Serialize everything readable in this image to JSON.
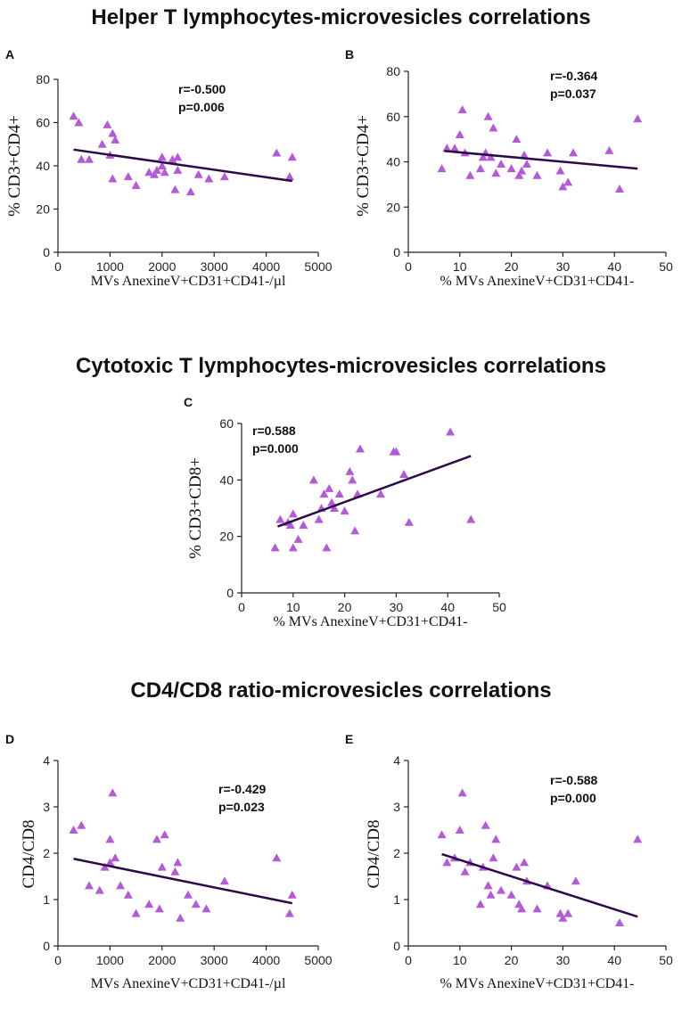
{
  "titles": {
    "helper": "Helper T lymphocytes-microvesicles  correlations",
    "cytotoxic": "Cytotoxic T lymphocytes-microvesicles  correlations",
    "ratio": "CD4/CD8 ratio-microvesicles  correlations"
  },
  "colors": {
    "marker": "#b45ad8",
    "line": "#2a0a4a"
  },
  "chart_data": [
    {
      "id": "A",
      "type": "scatter",
      "letter": "A",
      "xlabel": "MVs AnexineV+CD31+CD41-/µl",
      "ylabel": "% CD3+CD4+",
      "xlim": [
        0,
        5000
      ],
      "ylim": [
        0,
        80
      ],
      "xticks": [
        0,
        1000,
        2000,
        3000,
        4000,
        5000
      ],
      "yticks": [
        0,
        20,
        40,
        60,
        80
      ],
      "stats": [
        "r=-0.500",
        "p=0.006"
      ],
      "x": [
        300,
        400,
        450,
        600,
        850,
        950,
        1000,
        1050,
        1050,
        1100,
        1350,
        1500,
        1750,
        1850,
        1900,
        2000,
        2000,
        2050,
        2200,
        2250,
        2300,
        2300,
        2550,
        2700,
        2900,
        3200,
        4200,
        4450,
        4500
      ],
      "y": [
        63,
        60,
        43,
        43,
        50,
        59,
        45,
        34,
        55,
        52,
        35,
        31,
        37,
        36,
        38,
        44,
        40,
        37,
        43,
        29,
        44,
        38,
        28,
        36,
        34,
        35,
        46,
        35,
        44
      ],
      "fit": {
        "x": [
          300,
          4500
        ],
        "y": [
          47.5,
          33
        ]
      }
    },
    {
      "id": "B",
      "type": "scatter",
      "letter": "B",
      "xlabel": "% MVs AnexineV+CD31+CD41-",
      "ylabel": "% CD3+CD4+",
      "xlim": [
        0,
        50
      ],
      "ylim": [
        0,
        80
      ],
      "xticks": [
        0,
        10,
        20,
        30,
        40,
        50
      ],
      "yticks": [
        0,
        20,
        40,
        60,
        80
      ],
      "stats": [
        "r=-0.364",
        "p=0.037"
      ],
      "x": [
        6.5,
        7.5,
        9,
        10,
        10.5,
        11,
        12,
        14,
        14.5,
        15,
        15.5,
        16,
        16.5,
        17,
        18,
        20,
        21,
        21.5,
        22,
        22.5,
        23,
        25,
        27,
        29.5,
        30,
        31,
        32,
        39,
        41,
        44.5
      ],
      "y": [
        37,
        46,
        46,
        52,
        63,
        44,
        34,
        37,
        42,
        44,
        60,
        42,
        55,
        35,
        39,
        37,
        50,
        34,
        36,
        43,
        39,
        34,
        44,
        36,
        29,
        31,
        44,
        45,
        28,
        59
      ],
      "fit": {
        "x": [
          7,
          44.5
        ],
        "y": [
          44.8,
          37
        ]
      }
    },
    {
      "id": "C",
      "type": "scatter",
      "letter": "C",
      "xlabel": "% MVs AnexineV+CD31+CD41-",
      "ylabel": "% CD3+CD8+",
      "xlim": [
        0,
        50
      ],
      "ylim": [
        0,
        60
      ],
      "xticks": [
        0,
        10,
        20,
        30,
        40,
        50
      ],
      "yticks": [
        0,
        20,
        40,
        60
      ],
      "stats": [
        "r=0.588",
        "p=0.000"
      ],
      "x": [
        6.5,
        7.5,
        9,
        9.5,
        10,
        10,
        11,
        12,
        14,
        15,
        15.5,
        16,
        16.5,
        17,
        17.5,
        18,
        19,
        20,
        21,
        21.5,
        22,
        22.5,
        23,
        27,
        29.5,
        30,
        31.5,
        32.5,
        40.5,
        44.5
      ],
      "y": [
        16,
        26,
        25,
        24,
        16,
        28,
        19,
        24,
        40,
        26,
        30,
        35,
        16,
        37,
        32,
        30,
        35,
        29,
        43,
        40,
        22,
        35,
        51,
        35,
        50,
        50,
        42,
        25,
        57,
        26
      ],
      "fit": {
        "x": [
          7,
          44.5
        ],
        "y": [
          23.5,
          48.5
        ]
      }
    },
    {
      "id": "D",
      "type": "scatter",
      "letter": "D",
      "xlabel": "MVs AnexineV+CD31+CD41-/µl",
      "ylabel": "CD4/CD8",
      "xlim": [
        0,
        5000
      ],
      "ylim": [
        0,
        4
      ],
      "xticks": [
        0,
        1000,
        2000,
        3000,
        4000,
        5000
      ],
      "yticks": [
        0,
        1,
        2,
        3,
        4
      ],
      "stats": [
        "r=-0.429",
        "p=0.023"
      ],
      "x": [
        300,
        450,
        600,
        800,
        900,
        1000,
        1000,
        1050,
        1100,
        1200,
        1350,
        1500,
        1750,
        1900,
        1950,
        2000,
        2050,
        2250,
        2300,
        2350,
        2500,
        2650,
        2850,
        3200,
        4200,
        4450,
        4500
      ],
      "y": [
        2.5,
        2.6,
        1.3,
        1.2,
        1.7,
        2.3,
        1.8,
        3.3,
        1.9,
        1.3,
        1.1,
        0.7,
        0.9,
        2.3,
        0.8,
        1.7,
        2.4,
        1.6,
        1.8,
        0.6,
        1.1,
        0.9,
        0.8,
        1.4,
        1.9,
        0.7,
        1.1
      ],
      "fit": {
        "x": [
          300,
          4500
        ],
        "y": [
          1.88,
          0.92
        ]
      }
    },
    {
      "id": "E",
      "type": "scatter",
      "letter": "E",
      "xlabel": "% MVs AnexineV+CD31+CD41-",
      "ylabel": "CD4/CD8",
      "xlim": [
        0,
        50
      ],
      "ylim": [
        0,
        4
      ],
      "xticks": [
        0,
        10,
        20,
        30,
        40,
        50
      ],
      "yticks": [
        0,
        1,
        2,
        3,
        4
      ],
      "stats": [
        "r=-0.588",
        "p=0.000"
      ],
      "x": [
        6.5,
        7.5,
        9,
        10,
        10.5,
        11,
        12,
        14,
        14.5,
        15,
        15.5,
        16,
        16.5,
        17,
        18,
        20,
        21,
        21.5,
        22,
        22.5,
        23,
        25,
        27,
        29.5,
        30,
        31,
        32.5,
        41,
        44.5
      ],
      "y": [
        2.4,
        1.8,
        1.9,
        2.5,
        3.3,
        1.6,
        1.8,
        0.9,
        1.7,
        2.6,
        1.3,
        1.1,
        1.9,
        2.3,
        1.2,
        1.1,
        1.7,
        0.9,
        0.8,
        1.8,
        1.4,
        0.8,
        1.3,
        0.7,
        0.6,
        0.7,
        1.4,
        0.5,
        2.3
      ],
      "fit": {
        "x": [
          6.5,
          44.5
        ],
        "y": [
          1.98,
          0.63
        ]
      }
    }
  ]
}
